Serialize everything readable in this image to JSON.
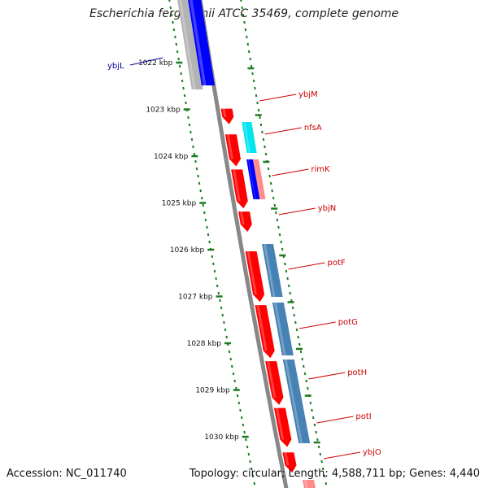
{
  "title": "Escherichia fergusonii ATCC 35469, complete genome",
  "footer": {
    "accession": "Accession: NC_011740",
    "summary": "Topology: circular; Length: 4,588,711 bp; Genes: 4,440"
  },
  "colors": {
    "forward_cds": "#ff0000",
    "reverse_cds": "#0000ff",
    "cyan_feature": "#00e5ee",
    "steelblue_feature": "#4682b4",
    "pink_feature": "#ff8a8a",
    "gray_feature": "#b3b3b3",
    "backbone": "#888888",
    "tick": "#1e7a1e",
    "label_red": "#cc0000",
    "label_blue": "#000099"
  },
  "ticks": [
    {
      "kbp": 1022,
      "label": "1022 kbp"
    },
    {
      "kbp": 1023,
      "label": "1023 kbp"
    },
    {
      "kbp": 1024,
      "label": "1024 kbp"
    },
    {
      "kbp": 1025,
      "label": "1025 kbp"
    },
    {
      "kbp": 1026,
      "label": "1026 kbp"
    },
    {
      "kbp": 1027,
      "label": "1027 kbp"
    },
    {
      "kbp": 1028,
      "label": "1028 kbp"
    },
    {
      "kbp": 1029,
      "label": "1029 kbp"
    },
    {
      "kbp": 1030,
      "label": "1030 kbp"
    }
  ],
  "genes": [
    {
      "name": "ybjL",
      "color_key": "label_blue",
      "start_kbp": 1021.4,
      "end_kbp": 1022.65,
      "lane": "reverse",
      "fill": "reverse_cds"
    },
    {
      "name": "ybjM",
      "color_key": "label_red",
      "start_kbp": 1022.95,
      "end_kbp": 1023.3,
      "lane": "forward",
      "fill": "forward_cds"
    },
    {
      "name": "nfsA",
      "color_key": "label_red",
      "start_kbp": 1023.5,
      "end_kbp": 1024.2,
      "lane": "forward",
      "fill": "forward_cds"
    },
    {
      "name": "rimK",
      "color_key": "label_red",
      "start_kbp": 1024.25,
      "end_kbp": 1025.1,
      "lane": "forward",
      "fill": "forward_cds"
    },
    {
      "name": "ybjN",
      "color_key": "label_red",
      "start_kbp": 1025.15,
      "end_kbp": 1025.6,
      "lane": "forward",
      "fill": "forward_cds"
    },
    {
      "name": "potF",
      "color_key": "label_red",
      "start_kbp": 1026.0,
      "end_kbp": 1027.1,
      "lane": "forward",
      "fill": "forward_cds"
    },
    {
      "name": "potG",
      "color_key": "label_red",
      "start_kbp": 1027.15,
      "end_kbp": 1028.3,
      "lane": "forward",
      "fill": "forward_cds"
    },
    {
      "name": "potH",
      "color_key": "label_red",
      "start_kbp": 1028.35,
      "end_kbp": 1029.3,
      "lane": "forward",
      "fill": "forward_cds"
    },
    {
      "name": "potI",
      "color_key": "label_red",
      "start_kbp": 1029.35,
      "end_kbp": 1030.2,
      "lane": "forward",
      "fill": "forward_cds"
    },
    {
      "name": "ybjO",
      "color_key": "label_red",
      "start_kbp": 1030.3,
      "end_kbp": 1030.75,
      "lane": "forward",
      "fill": "forward_cds"
    }
  ]
}
